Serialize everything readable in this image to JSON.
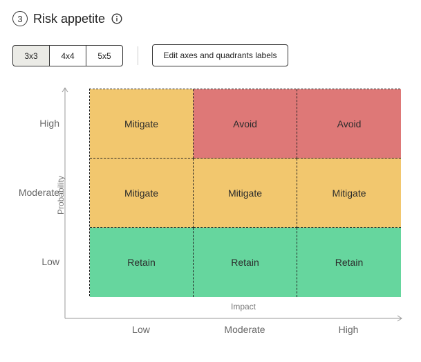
{
  "header": {
    "step_number": "3",
    "title": "Risk appetite",
    "info_icon": "info-icon"
  },
  "toolbar": {
    "grid_sizes": [
      {
        "label": "3x3",
        "selected": true
      },
      {
        "label": "4x4",
        "selected": false
      },
      {
        "label": "5x5",
        "selected": false
      }
    ],
    "edit_label": "Edit axes and quadrants labels"
  },
  "matrix": {
    "y_axis_title": "Probability",
    "x_axis_title": "Impact",
    "rows": [
      "High",
      "Moderate",
      "Low"
    ],
    "columns": [
      "Low",
      "Moderate",
      "High"
    ],
    "cells": [
      [
        {
          "label": "Mitigate",
          "color": "#f2c76e"
        },
        {
          "label": "Avoid",
          "color": "#de7877"
        },
        {
          "label": "Avoid",
          "color": "#de7877"
        }
      ],
      [
        {
          "label": "Mitigate",
          "color": "#f2c76e"
        },
        {
          "label": "Mitigate",
          "color": "#f2c76e"
        },
        {
          "label": "Mitigate",
          "color": "#f2c76e"
        }
      ],
      [
        {
          "label": "Retain",
          "color": "#66d69e"
        },
        {
          "label": "Retain",
          "color": "#66d69e"
        },
        {
          "label": "Retain",
          "color": "#66d69e"
        }
      ]
    ]
  }
}
